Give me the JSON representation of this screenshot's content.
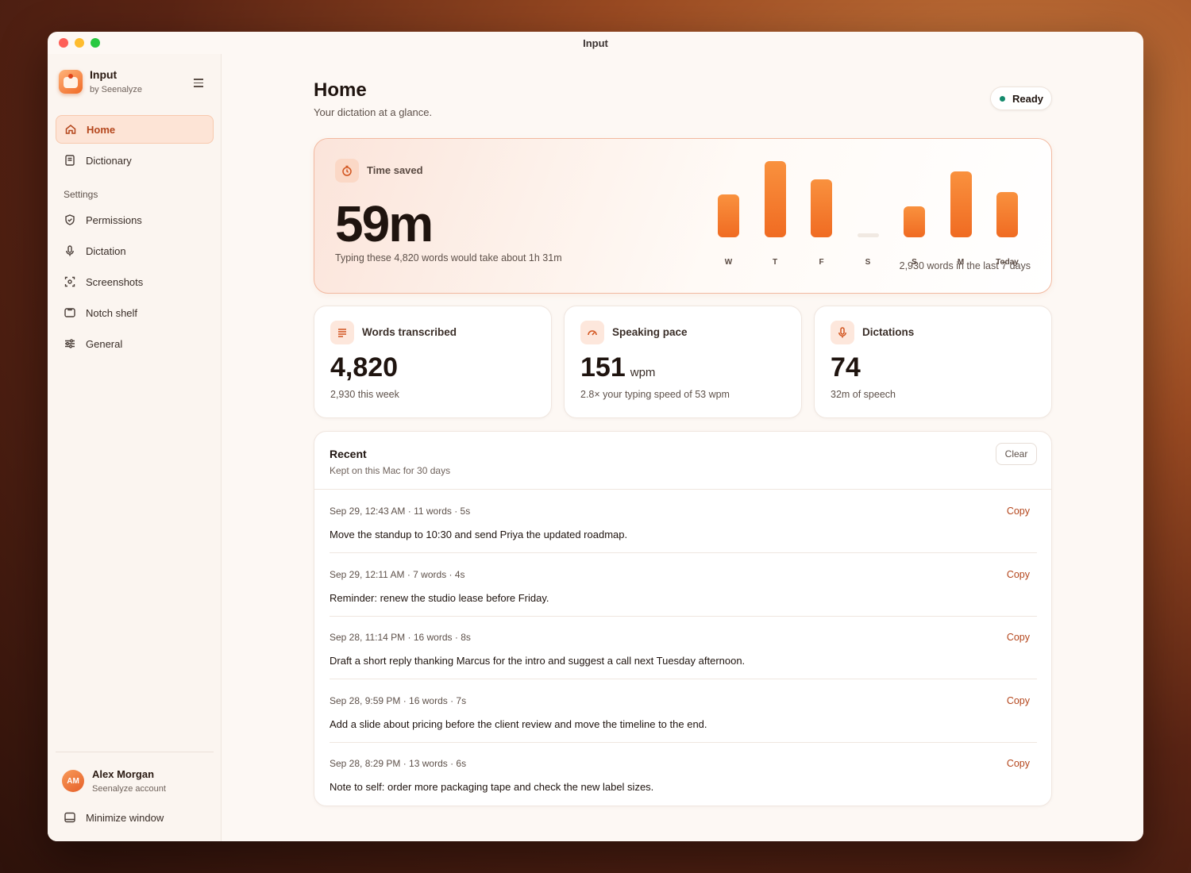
{
  "window": {
    "title": "Input"
  },
  "sidebar": {
    "app_name": "Input",
    "app_sub": "by Seenalyze",
    "nav_top": [
      {
        "label": "Home",
        "icon": "home-icon",
        "active": true
      },
      {
        "label": "Dictionary",
        "icon": "book-icon",
        "active": false
      }
    ],
    "settings_label": "Settings",
    "nav_settings": [
      {
        "label": "Permissions",
        "icon": "shield-check-icon"
      },
      {
        "label": "Dictation",
        "icon": "microphone-icon"
      },
      {
        "label": "Screenshots",
        "icon": "screenshot-icon"
      },
      {
        "label": "Notch shelf",
        "icon": "notch-icon"
      },
      {
        "label": "General",
        "icon": "sliders-icon"
      }
    ],
    "user": {
      "initials": "AM",
      "name": "Alex Morgan",
      "sub": "Seenalyze account"
    },
    "minimize_label": "Minimize window"
  },
  "header": {
    "title": "Home",
    "subtitle": "Your dictation at a glance.",
    "status": "Ready",
    "status_color": "#138a6c"
  },
  "hero": {
    "label": "Time saved",
    "value": "59m",
    "note": "Typing these 4,820 words would take about 1h 31m",
    "bars_note": "2,930 words in the last 7 days"
  },
  "chart_data": {
    "type": "bar",
    "categories": [
      "W",
      "T",
      "F",
      "S",
      "S",
      "M",
      "Today"
    ],
    "values": [
      0.54,
      0.96,
      0.73,
      0.05,
      0.39,
      0.83,
      0.57
    ],
    "ylim": [
      0,
      1
    ],
    "accent": "#f06b22"
  },
  "stats": [
    {
      "label": "Words transcribed",
      "icon": "lines-icon",
      "value": "4,820",
      "unit": "",
      "note": "2,930 this week"
    },
    {
      "label": "Speaking pace",
      "icon": "gauge-icon",
      "value": "151",
      "unit": "wpm",
      "note": "2.8× your typing speed of 53 wpm"
    },
    {
      "label": "Dictations",
      "icon": "microphone-icon",
      "value": "74",
      "unit": "",
      "note": "32m of speech"
    }
  ],
  "recent": {
    "title": "Recent",
    "subtitle": "Kept on this Mac for 30 days",
    "clear_label": "Clear",
    "copy_label": "Copy",
    "items": [
      {
        "meta": "Sep 29, 12:43 AM · 11 words · 5s",
        "text": "Move the standup to 10:30 and send Priya the updated roadmap."
      },
      {
        "meta": "Sep 29, 12:11 AM · 7 words · 4s",
        "text": "Reminder: renew the studio lease before Friday."
      },
      {
        "meta": "Sep 28, 11:14 PM · 16 words · 8s",
        "text": "Draft a short reply thanking Marcus for the intro and suggest a call next Tuesday afternoon."
      },
      {
        "meta": "Sep 28, 9:59 PM · 16 words · 7s",
        "text": "Add a slide about pricing before the client review and move the timeline to the end."
      },
      {
        "meta": "Sep 28, 8:29 PM · 13 words · 6s",
        "text": "Note to self: order more packaging tape and check the new label sizes."
      }
    ]
  }
}
